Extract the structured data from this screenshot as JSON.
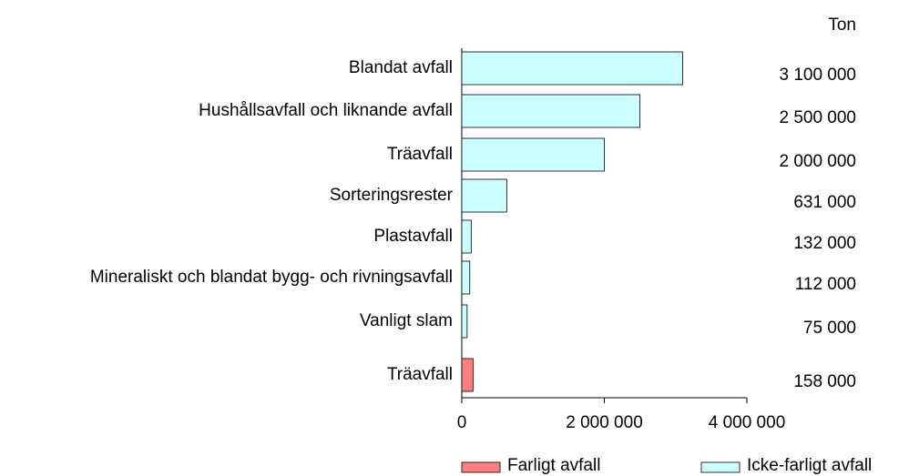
{
  "chart_data": {
    "type": "bar",
    "orientation": "horizontal",
    "unit": "Ton",
    "categories": [
      "Blandat avfall",
      "Hushållsavfall och liknande avfall",
      "Träavfall",
      "Sorteringsrester",
      "Plastavfall",
      "Mineraliskt och blandat bygg- och rivningsavfall",
      "Vanligt slam",
      "Träavfall"
    ],
    "series": [
      {
        "name": "Farligt avfall",
        "color": "#ff7f7f",
        "values": [
          null,
          null,
          null,
          null,
          null,
          null,
          null,
          158000
        ],
        "value_labels": [
          null,
          null,
          null,
          null,
          null,
          null,
          null,
          "158 000"
        ]
      },
      {
        "name": "Icke-farligt avfall",
        "color": "#ccffff",
        "values": [
          3100000,
          2500000,
          2000000,
          631000,
          132000,
          112000,
          75000,
          null
        ],
        "value_labels": [
          "3 100 000",
          "2 500 000",
          "2 000 000",
          "631 000",
          "132 000",
          "112 000",
          "75 000",
          null
        ]
      }
    ],
    "xlim": [
      0,
      4000000
    ],
    "xticks": [
      0,
      {
        "value": 2000000,
        "label": "2 000 000"
      },
      {
        "value": 4000000,
        "label": "4 000 000"
      }
    ],
    "legend": "bottom"
  }
}
